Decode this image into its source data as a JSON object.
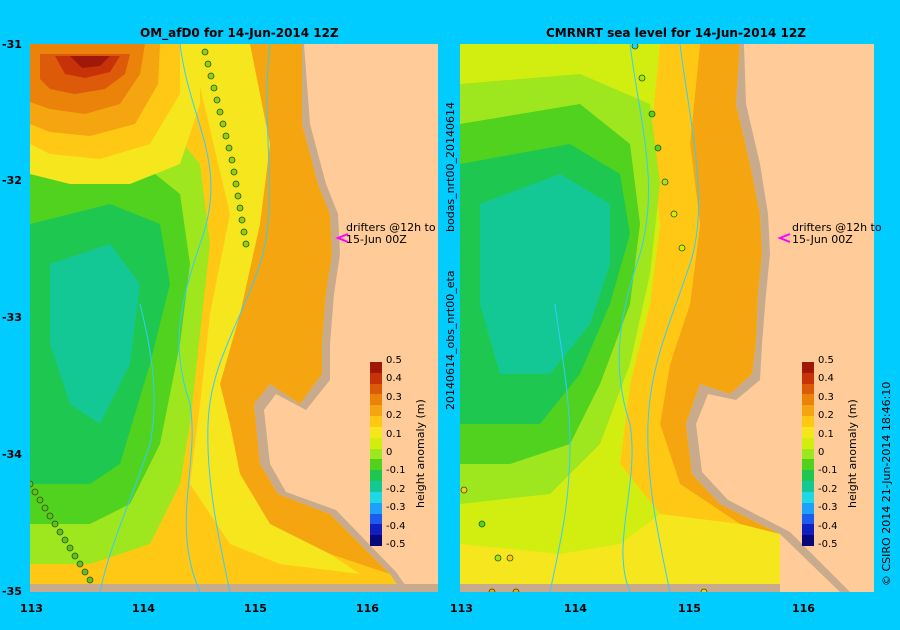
{
  "left_panel": {
    "title": "OM_afD0 for 14-Jun-2014 12Z",
    "annotation_line1": "drifters @12h to",
    "annotation_line2": "15-Jun 00Z",
    "colorbar_label": "height anomaly (m)"
  },
  "right_panel": {
    "title": "CMRNRT sea level  for 14-Jun-2014 12Z",
    "annotation_line1": "drifters @12h to",
    "annotation_line2": "15-Jun 00Z",
    "colorbar_label": "height anomaly (m)",
    "vertical_source_top": "bodas_nrt00_20140614",
    "vertical_source_bottom": "20140614_obs_nrt00_eta"
  },
  "footer_vertical": "© CSIRO 2014    21-Jun-2014 18:46:10",
  "axes": {
    "lon_ticks": [
      "113",
      "114",
      "115",
      "116"
    ],
    "lat_ticks": [
      "-31",
      "-32",
      "-33",
      "-34",
      "-35"
    ],
    "lon_range": [
      113,
      116.65
    ],
    "lat_range": [
      -35,
      -31
    ]
  },
  "colorbar": {
    "ticks": [
      "0.5",
      "0.4",
      "0.3",
      "0.2",
      "0.1",
      "0",
      "-0.1",
      "-0.2",
      "-0.3",
      "-0.4",
      "-0.5"
    ],
    "range": [
      -0.5,
      0.5
    ],
    "colors": [
      "#08087a",
      "#1020c0",
      "#1e5cf0",
      "#1ea0ff",
      "#1ed8e6",
      "#14c896",
      "#1ec850",
      "#50d21e",
      "#9ee61e",
      "#d2ee10",
      "#f5e61e",
      "#ffc814",
      "#f5a50f",
      "#eb820a",
      "#dc5a0a",
      "#c83208",
      "#a0180a"
    ]
  },
  "colors": {
    "background": "#00ccff",
    "land": "#ffcc99",
    "shelf": "#c8aa8c",
    "isobath": "#33ccff",
    "annotation_arrow": "#ff00ff"
  }
}
